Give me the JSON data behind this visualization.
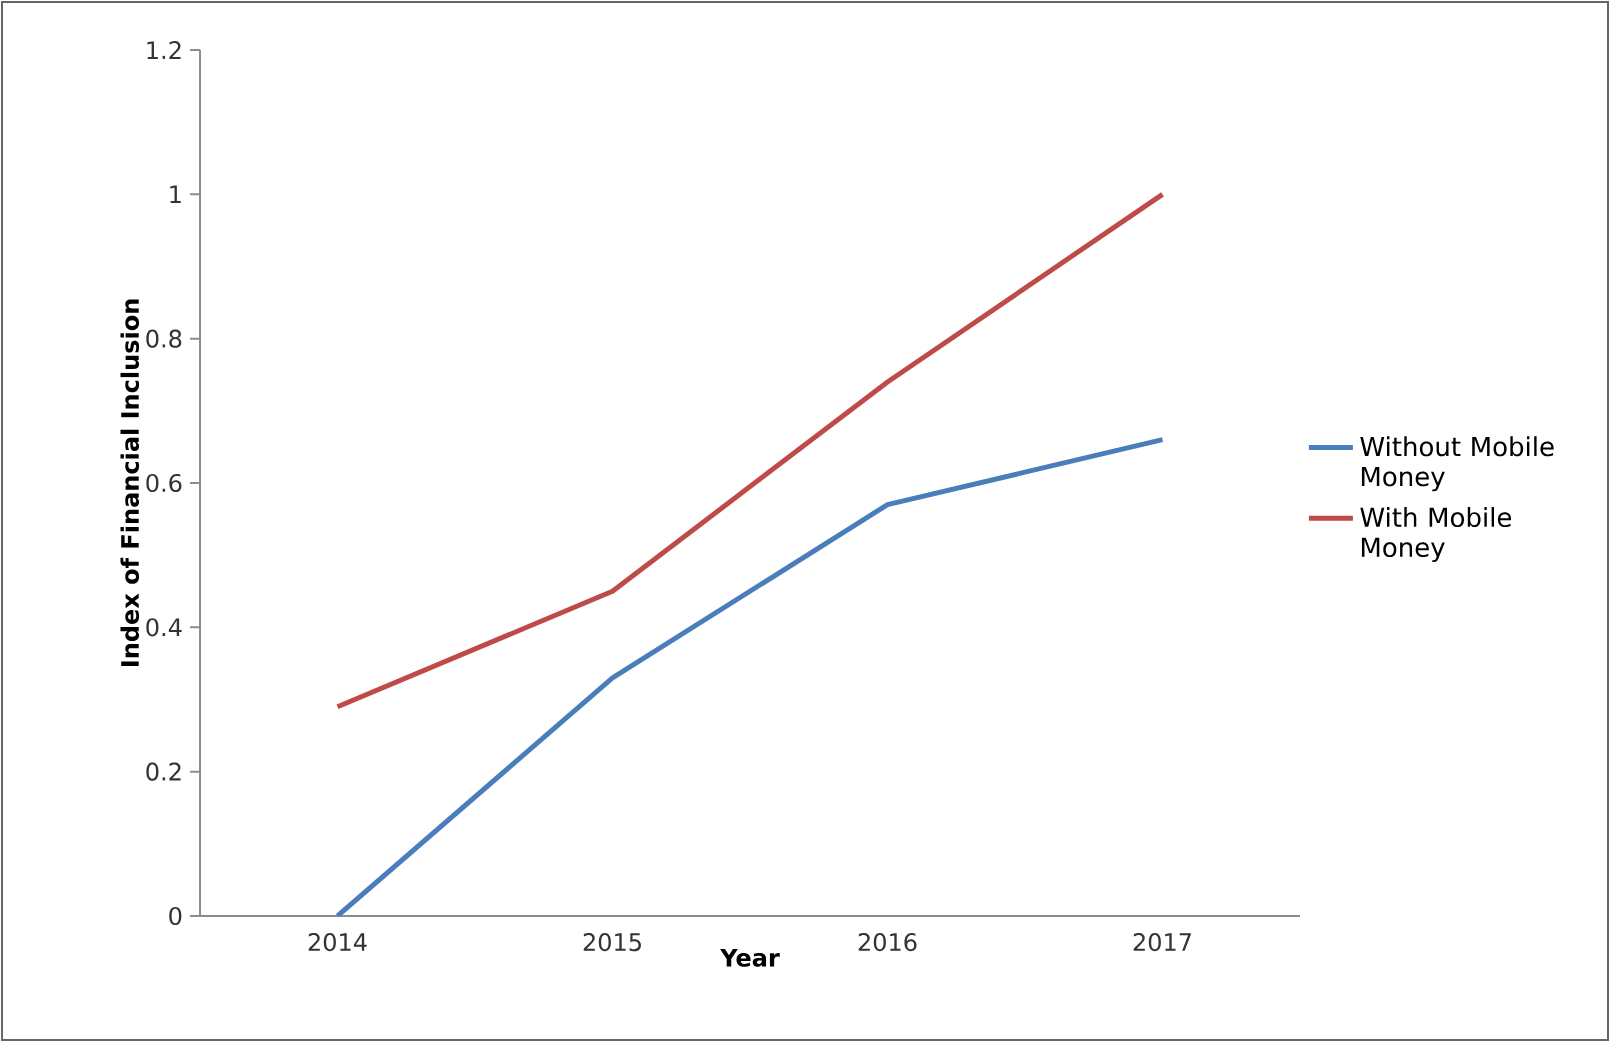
{
  "chart_data": {
    "type": "line",
    "xlabel": "Year",
    "ylabel": "Index of Financial Inclusion",
    "categories": [
      "2014",
      "2015",
      "2016",
      "2017"
    ],
    "series": [
      {
        "name": "Without Mobile Money",
        "color": "#4a7ebb",
        "values": [
          0,
          0.33,
          0.57,
          0.66
        ]
      },
      {
        "name": "With Mobile Money",
        "color": "#be4b48",
        "values": [
          0.29,
          0.45,
          0.74,
          1.0
        ]
      }
    ],
    "ylim": [
      0,
      1.2
    ],
    "yticks": [
      0,
      0.2,
      0.4,
      0.6,
      0.8,
      1,
      1.2
    ],
    "grid": false,
    "legend": "right",
    "marker": "none",
    "line_style": "solid"
  }
}
